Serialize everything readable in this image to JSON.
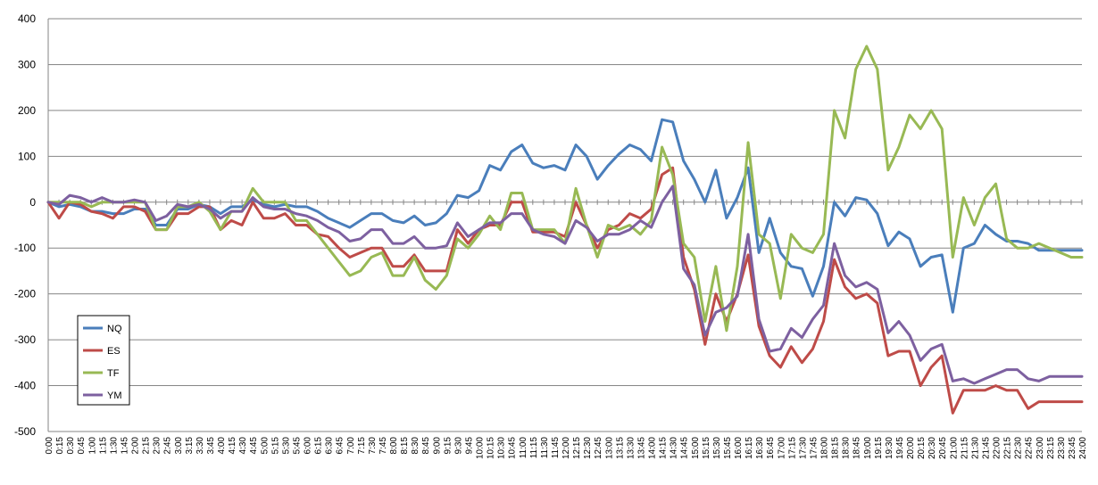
{
  "chart_data": {
    "type": "line",
    "title": "",
    "xlabel": "",
    "ylabel": "",
    "ylim": [
      -500,
      400
    ],
    "yticks": [
      400,
      300,
      200,
      100,
      0,
      -100,
      -200,
      -300,
      -400,
      -500
    ],
    "grid": true,
    "legend_position": "bottom-left",
    "categories": [
      "0:00",
      "0:15",
      "0:30",
      "0:45",
      "1:00",
      "1:15",
      "1:30",
      "1:45",
      "2:00",
      "2:15",
      "2:30",
      "2:45",
      "3:00",
      "3:15",
      "3:30",
      "3:45",
      "4:00",
      "4:15",
      "4:30",
      "4:45",
      "5:00",
      "5:15",
      "5:30",
      "5:45",
      "6:00",
      "6:15",
      "6:30",
      "6:45",
      "7:00",
      "7:15",
      "7:30",
      "7:45",
      "8:00",
      "8:15",
      "8:30",
      "8:45",
      "9:00",
      "9:15",
      "9:30",
      "9:45",
      "10:00",
      "10:15",
      "10:30",
      "10:45",
      "11:00",
      "11:15",
      "11:30",
      "11:45",
      "12:00",
      "12:15",
      "12:30",
      "12:45",
      "13:00",
      "13:15",
      "13:30",
      "13:45",
      "14:00",
      "14:15",
      "14:30",
      "14:45",
      "15:00",
      "15:15",
      "15:30",
      "15:45",
      "16:00",
      "16:15",
      "16:30",
      "16:45",
      "17:00",
      "17:15",
      "17:30",
      "17:45",
      "18:00",
      "18:15",
      "18:30",
      "18:45",
      "19:00",
      "19:15",
      "19:30",
      "19:45",
      "20:00",
      "20:15",
      "20:30",
      "20:45",
      "21:00",
      "21:15",
      "21:30",
      "21:45",
      "22:00",
      "22:15",
      "22:30",
      "22:45",
      "23:00",
      "23:15",
      "23:30",
      "23:45",
      "24:00"
    ],
    "series": [
      {
        "name": "NQ",
        "color": "#4a7ebb",
        "values": [
          0,
          -10,
          -5,
          -10,
          -20,
          -20,
          -25,
          -25,
          -15,
          -15,
          -50,
          -50,
          -15,
          -15,
          -5,
          -10,
          -25,
          -10,
          -10,
          5,
          -5,
          -10,
          -5,
          -10,
          -10,
          -20,
          -35,
          -45,
          -55,
          -40,
          -25,
          -25,
          -40,
          -45,
          -30,
          -50,
          -45,
          -25,
          15,
          10,
          25,
          80,
          70,
          110,
          125,
          85,
          75,
          80,
          70,
          125,
          100,
          50,
          80,
          105,
          125,
          115,
          90,
          180,
          175,
          90,
          50,
          0,
          70,
          -35,
          10,
          75,
          -110,
          -35,
          -110,
          -140,
          -145,
          -205,
          -140,
          0,
          -30,
          10,
          5,
          -25,
          -95,
          -65,
          -80,
          -140,
          -120,
          -115,
          -240,
          -100,
          -90,
          -50,
          -70,
          -85,
          -85,
          -90,
          -105,
          -105,
          -105,
          -105,
          -105
        ]
      },
      {
        "name": "ES",
        "color": "#be4b48",
        "values": [
          0,
          -35,
          0,
          -5,
          -20,
          -25,
          -35,
          -10,
          -10,
          -20,
          -60,
          -60,
          -25,
          -25,
          -10,
          -10,
          -60,
          -40,
          -50,
          0,
          -35,
          -35,
          -25,
          -50,
          -50,
          -70,
          -75,
          -100,
          -120,
          -110,
          -100,
          -100,
          -140,
          -140,
          -115,
          -150,
          -150,
          -150,
          -60,
          -90,
          -60,
          -50,
          -50,
          0,
          0,
          -65,
          -65,
          -65,
          -75,
          0,
          -50,
          -100,
          -60,
          -50,
          -25,
          -35,
          -15,
          60,
          75,
          -120,
          -190,
          -310,
          -200,
          -260,
          -200,
          -115,
          -270,
          -335,
          -360,
          -315,
          -350,
          -320,
          -260,
          -125,
          -185,
          -210,
          -200,
          -220,
          -335,
          -325,
          -325,
          -400,
          -360,
          -335,
          -460,
          -410,
          -410,
          -410,
          -400,
          -410,
          -410,
          -450,
          -435,
          -435,
          -435,
          -435,
          -435
        ]
      },
      {
        "name": "TF",
        "color": "#98b954",
        "values": [
          0,
          0,
          0,
          0,
          -10,
          0,
          0,
          0,
          0,
          0,
          -60,
          -60,
          -10,
          -10,
          0,
          -20,
          -60,
          -20,
          -20,
          30,
          0,
          0,
          0,
          -40,
          -40,
          -70,
          -100,
          -130,
          -160,
          -150,
          -120,
          -110,
          -160,
          -160,
          -120,
          -170,
          -190,
          -160,
          -80,
          -100,
          -70,
          -30,
          -60,
          20,
          20,
          -60,
          -60,
          -60,
          -90,
          30,
          -50,
          -120,
          -50,
          -60,
          -50,
          -70,
          -40,
          120,
          60,
          -90,
          -120,
          -260,
          -140,
          -280,
          -140,
          130,
          -70,
          -90,
          -210,
          -70,
          -100,
          -110,
          -70,
          200,
          140,
          290,
          340,
          290,
          70,
          120,
          190,
          160,
          200,
          160,
          -120,
          10,
          -50,
          10,
          40,
          -80,
          -100,
          -100,
          -90,
          -100,
          -110,
          -120,
          -120
        ]
      },
      {
        "name": "YM",
        "color": "#7d60a0",
        "values": [
          0,
          -5,
          15,
          10,
          0,
          10,
          0,
          0,
          5,
          0,
          -40,
          -30,
          -5,
          -10,
          -5,
          -15,
          -35,
          -20,
          -20,
          10,
          -10,
          -15,
          -15,
          -25,
          -30,
          -40,
          -55,
          -65,
          -85,
          -80,
          -60,
          -60,
          -90,
          -90,
          -75,
          -100,
          -100,
          -95,
          -45,
          -75,
          -60,
          -45,
          -45,
          -25,
          -25,
          -60,
          -70,
          -75,
          -90,
          -40,
          -55,
          -85,
          -70,
          -70,
          -60,
          -40,
          -55,
          0,
          35,
          -145,
          -180,
          -290,
          -240,
          -230,
          -205,
          -70,
          -255,
          -325,
          -320,
          -275,
          -295,
          -255,
          -225,
          -90,
          -160,
          -185,
          -175,
          -190,
          -285,
          -260,
          -290,
          -345,
          -320,
          -310,
          -390,
          -385,
          -395,
          -385,
          -375,
          -365,
          -365,
          -385,
          -390,
          -380,
          -380,
          -380,
          -380
        ]
      }
    ]
  }
}
